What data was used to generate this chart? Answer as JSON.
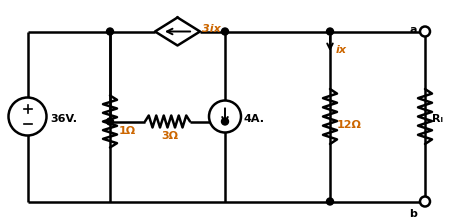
{
  "bg_color": "#ffffff",
  "line_color": "#000000",
  "orange_color": "#cc6600",
  "fig_width": 4.62,
  "fig_height": 2.24,
  "dpi": 100,
  "xlim": [
    0,
    9.24
  ],
  "ylim": [
    0,
    4.48
  ]
}
